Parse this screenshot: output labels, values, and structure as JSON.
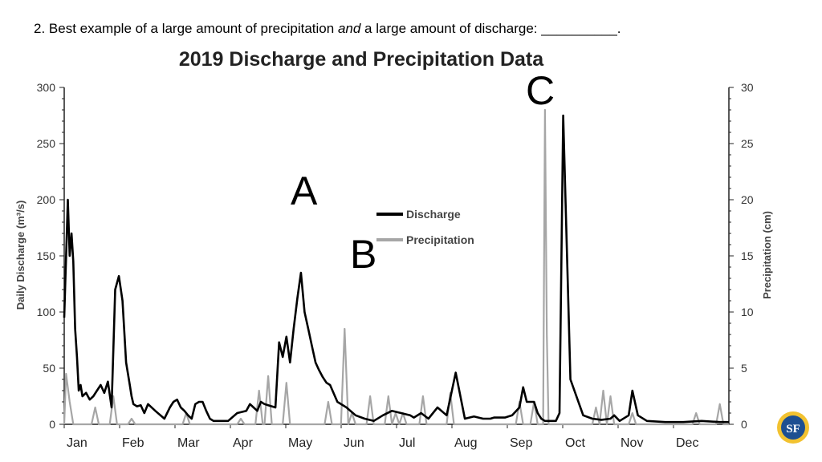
{
  "question": {
    "prefix": "2. Best example of a large amount of precipitation ",
    "emph": "and",
    "suffix": " a large amount of discharge: __________."
  },
  "letters": {
    "a": "A",
    "b": "B",
    "c": "C"
  },
  "logo": {
    "text": "SF",
    "icon": "seal-logo-icon"
  },
  "chart_data": {
    "type": "line",
    "title": "2019 Discharge and Precipitation Data",
    "ylabel": "Daily Discharge (m³/s)",
    "y2label": "Precipitation (cm)",
    "ylim": [
      0,
      300
    ],
    "y2lim": [
      0,
      30
    ],
    "yticks": [
      0,
      50,
      100,
      150,
      200,
      250,
      300
    ],
    "y2ticks": [
      0,
      5,
      10,
      15,
      20,
      25,
      30
    ],
    "xlim": [
      0,
      365
    ],
    "months": [
      "Jan",
      "Feb",
      "Mar",
      "Apr",
      "May",
      "Jun",
      "Jul",
      "Aug",
      "Sep",
      "Oct",
      "Nov",
      "Dec"
    ],
    "legend": "center",
    "colors": {
      "discharge": "#000000",
      "precipitation": "#a6a6a6"
    },
    "series": [
      {
        "name": "Discharge",
        "axis": "left",
        "x": [
          0,
          2,
          3,
          4,
          5,
          6,
          7,
          8,
          9,
          10,
          12,
          14,
          16,
          18,
          20,
          22,
          24,
          26,
          28,
          30,
          32,
          34,
          36,
          37,
          38,
          40,
          42,
          44,
          46,
          50,
          55,
          58,
          60,
          62,
          64,
          66,
          68,
          70,
          72,
          74,
          76,
          78,
          80,
          82,
          84,
          86,
          88,
          90,
          95,
          100,
          102,
          104,
          106,
          108,
          110,
          112,
          114,
          116,
          118,
          120,
          122,
          124,
          126,
          128,
          130,
          132,
          134,
          136,
          138,
          140,
          142,
          144,
          146,
          150,
          155,
          160,
          165,
          170,
          175,
          180,
          185,
          190,
          192,
          196,
          200,
          205,
          210,
          215,
          220,
          225,
          230,
          234,
          236,
          238,
          240,
          242,
          246,
          250,
          252,
          254,
          256,
          258,
          260,
          262,
          264,
          266,
          268,
          270,
          272,
          274,
          278,
          285,
          290,
          295,
          300,
          302,
          305,
          310,
          312,
          315,
          320,
          330,
          340,
          350,
          360,
          365
        ],
        "y": [
          95,
          200,
          150,
          170,
          145,
          85,
          60,
          30,
          35,
          25,
          28,
          22,
          25,
          30,
          35,
          28,
          38,
          15,
          120,
          132,
          110,
          55,
          35,
          25,
          18,
          16,
          17,
          10,
          18,
          12,
          5,
          15,
          20,
          22,
          15,
          12,
          8,
          5,
          18,
          20,
          20,
          12,
          5,
          3,
          3,
          3,
          3,
          3,
          10,
          12,
          18,
          15,
          12,
          20,
          18,
          17,
          16,
          15,
          73,
          60,
          78,
          55,
          85,
          112,
          135,
          100,
          85,
          70,
          55,
          48,
          42,
          37,
          35,
          20,
          15,
          8,
          5,
          3,
          8,
          12,
          10,
          8,
          6,
          10,
          5,
          15,
          8,
          46,
          5,
          7,
          5,
          5,
          6,
          6,
          6,
          6,
          8,
          15,
          33,
          20,
          20,
          20,
          10,
          5,
          3,
          3,
          3,
          3,
          10,
          275,
          40,
          8,
          5,
          4,
          5,
          8,
          3,
          8,
          30,
          8,
          3,
          2,
          2,
          3,
          2,
          2
        ]
      },
      {
        "name": "Precipitation",
        "axis": "right",
        "x": [
          0,
          1,
          3,
          5,
          15,
          17,
          19,
          25,
          27,
          29,
          35,
          37,
          39,
          65,
          67,
          69,
          95,
          97,
          99,
          105,
          107,
          109,
          110,
          112,
          114,
          120,
          122,
          124,
          143,
          145,
          147,
          152,
          154,
          156,
          158,
          160,
          162,
          166,
          168,
          170,
          176,
          178,
          180,
          182,
          184,
          186,
          188,
          190,
          195,
          197,
          199,
          210,
          212,
          214,
          248,
          250,
          252,
          256,
          258,
          260,
          263,
          264,
          265,
          266,
          268,
          275,
          285,
          290,
          292,
          294,
          296,
          298,
          300,
          302,
          304,
          310,
          312,
          314,
          345,
          347,
          349,
          358,
          360,
          362,
          365
        ],
        "y": [
          0,
          4.5,
          2,
          0,
          0,
          1.5,
          0,
          0,
          2.5,
          0,
          0,
          0.5,
          0,
          0,
          1,
          0,
          0,
          0.5,
          0,
          0,
          3,
          0,
          0,
          4.3,
          0,
          0,
          3.7,
          0,
          0,
          2,
          0,
          0,
          8.5,
          0,
          1,
          0,
          0,
          0,
          2.5,
          0,
          0,
          2.5,
          0,
          1,
          0,
          1,
          0,
          0,
          0,
          2.5,
          0,
          0,
          2.8,
          0,
          0,
          2,
          0,
          0,
          2,
          0,
          0,
          28,
          8,
          0,
          0,
          0,
          0,
          0,
          1.5,
          0,
          3,
          0,
          2.5,
          0,
          0,
          0,
          1,
          0,
          0,
          1,
          0,
          0,
          1.8,
          0,
          0
        ]
      }
    ]
  }
}
